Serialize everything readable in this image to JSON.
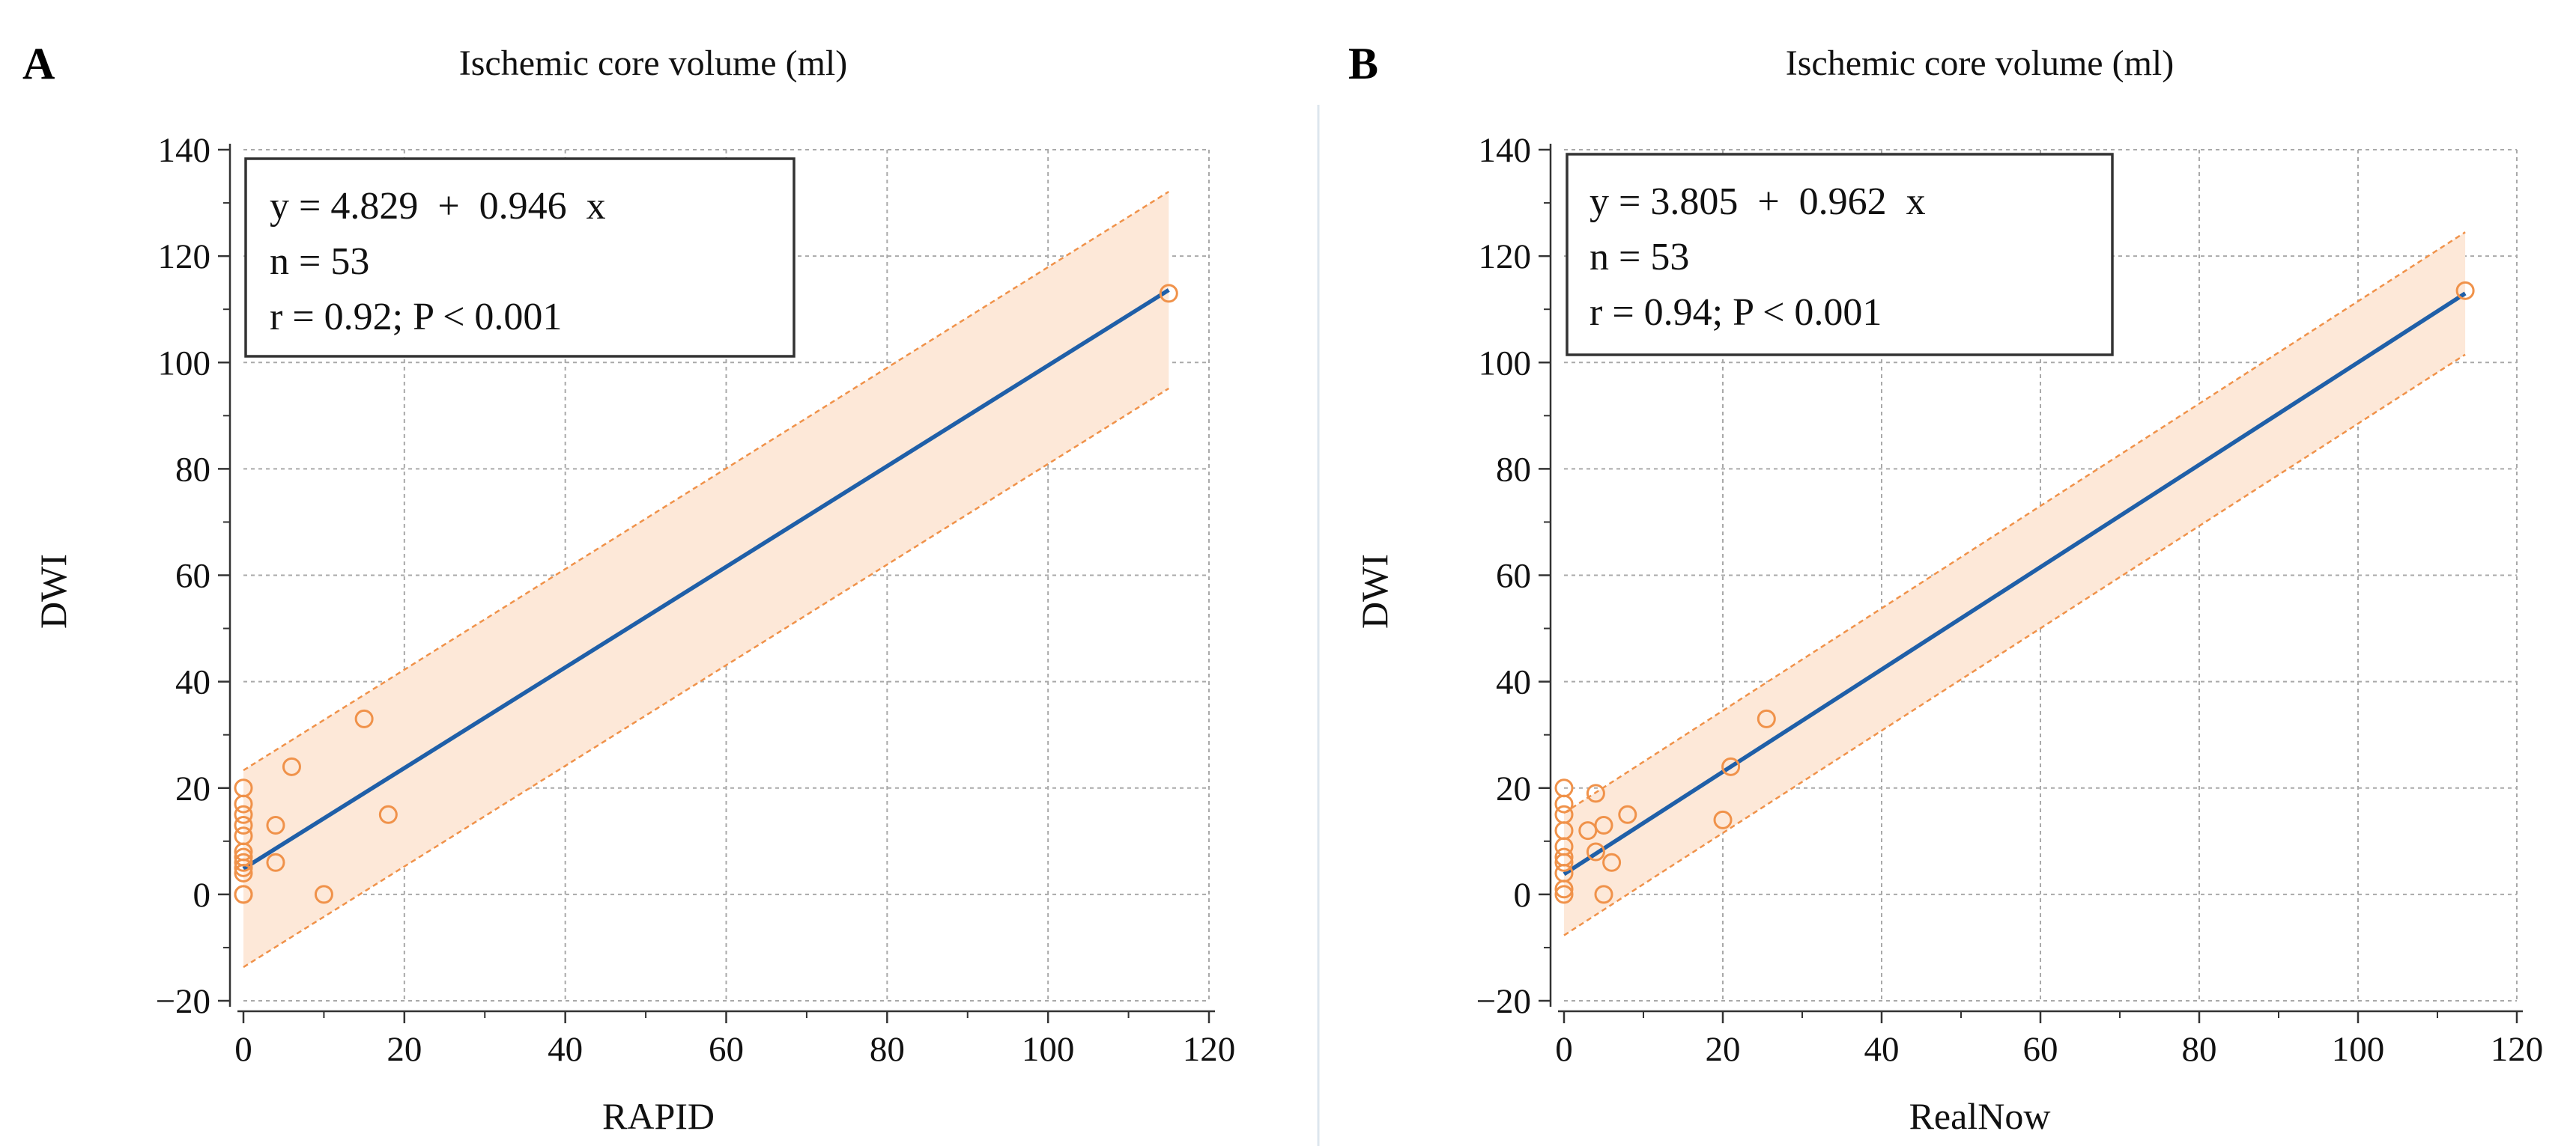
{
  "colors": {
    "line": "#1f5fa8",
    "points": "#f0924a",
    "band_fill": "#fde8d8",
    "band_edge": "#f0924a"
  },
  "chart_data": [
    {
      "type": "scatter",
      "panel_label": "A",
      "title": "Ischemic core volume (ml)",
      "xlabel": "RAPID",
      "ylabel": "DWI",
      "xlim": [
        0,
        120
      ],
      "ylim": [
        -20,
        140
      ],
      "xticks": [
        0,
        20,
        40,
        60,
        80,
        100,
        120
      ],
      "yticks": [
        -20,
        0,
        20,
        40,
        60,
        80,
        100,
        120,
        140
      ],
      "ytick_labels": [
        "−20",
        "0",
        "20",
        "40",
        "60",
        "80",
        "100",
        "120",
        "140"
      ],
      "grid": true,
      "regression": {
        "intercept": 4.829,
        "slope": 0.946,
        "x_range": [
          0,
          115
        ],
        "band_halfwidth": 18.5
      },
      "stats": [
        "y = 4.829  +  0.946  x",
        "n = 53",
        "r = 0.92; P < 0.001"
      ],
      "points": [
        {
          "x": 0,
          "y": 0
        },
        {
          "x": 0,
          "y": 0
        },
        {
          "x": 0,
          "y": 4
        },
        {
          "x": 0,
          "y": 5
        },
        {
          "x": 0,
          "y": 6
        },
        {
          "x": 0,
          "y": 7
        },
        {
          "x": 0,
          "y": 8
        },
        {
          "x": 0,
          "y": 11
        },
        {
          "x": 0,
          "y": 13
        },
        {
          "x": 0,
          "y": 15
        },
        {
          "x": 0,
          "y": 17
        },
        {
          "x": 0,
          "y": 20
        },
        {
          "x": 4,
          "y": 6
        },
        {
          "x": 4,
          "y": 13
        },
        {
          "x": 6,
          "y": 24
        },
        {
          "x": 10,
          "y": 0
        },
        {
          "x": 15,
          "y": 33
        },
        {
          "x": 18,
          "y": 15
        },
        {
          "x": 115,
          "y": 113
        }
      ]
    },
    {
      "type": "scatter",
      "panel_label": "B",
      "title": "Ischemic core volume (ml)",
      "xlabel": "RealNow",
      "ylabel": "DWI",
      "xlim": [
        0,
        120
      ],
      "ylim": [
        -20,
        140
      ],
      "xticks": [
        0,
        20,
        40,
        60,
        80,
        100,
        120
      ],
      "yticks": [
        -20,
        0,
        20,
        40,
        60,
        80,
        100,
        120,
        140
      ],
      "ytick_labels": [
        "−20",
        "0",
        "20",
        "40",
        "60",
        "80",
        "100",
        "120",
        "140"
      ],
      "grid": true,
      "regression": {
        "intercept": 3.805,
        "slope": 0.962,
        "x_range": [
          0,
          113.5
        ],
        "band_halfwidth": 11.5
      },
      "stats": [
        "y = 3.805  +  0.962  x",
        "n = 53",
        "r = 0.94; P < 0.001"
      ],
      "points": [
        {
          "x": 0,
          "y": 0
        },
        {
          "x": 0,
          "y": 1
        },
        {
          "x": 0,
          "y": 4
        },
        {
          "x": 0,
          "y": 6
        },
        {
          "x": 0,
          "y": 7
        },
        {
          "x": 0,
          "y": 9
        },
        {
          "x": 0,
          "y": 12
        },
        {
          "x": 0,
          "y": 15
        },
        {
          "x": 0,
          "y": 17
        },
        {
          "x": 0,
          "y": 20
        },
        {
          "x": 3,
          "y": 12
        },
        {
          "x": 4,
          "y": 8
        },
        {
          "x": 4,
          "y": 19
        },
        {
          "x": 5,
          "y": 0
        },
        {
          "x": 5,
          "y": 13
        },
        {
          "x": 6,
          "y": 6
        },
        {
          "x": 8,
          "y": 15
        },
        {
          "x": 20,
          "y": 14
        },
        {
          "x": 21,
          "y": 24
        },
        {
          "x": 25.5,
          "y": 33
        },
        {
          "x": 113.5,
          "y": 113.5
        }
      ]
    }
  ]
}
